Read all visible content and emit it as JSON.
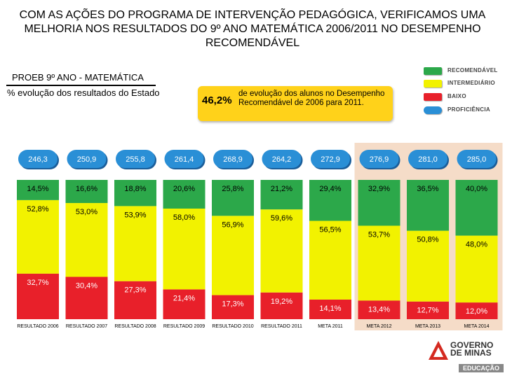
{
  "title": "COM AS AÇÕES DO PROGRAMA DE INTERVENÇÃO PEDAGÓGICA, VERIFICAMOS UMA MELHORIA NOS RESULTADOS DO 9º ANO MATEMÁTICA 2006/2011 NO DESEMPENHO RECOMENDÁVEL",
  "subtitle": "PROEB 9º ANO - MATEMÁTICA",
  "caption": "% evolução dos resultados do Estado",
  "callout": {
    "percent": "46,2%",
    "text": "de evolução dos alunos no Desempenho Recomendável de 2006 para 2011."
  },
  "legend": [
    {
      "label": "RECOMENDÁVEL",
      "color": "#2ca84a"
    },
    {
      "label": "INTERMEDIÁRIO",
      "color": "#f2f200"
    },
    {
      "label": "BAIXO",
      "color": "#e8202a"
    },
    {
      "label": "PROFICIÊNCIA",
      "color": "#2a8fd6"
    }
  ],
  "logo": {
    "line1": "GOVERNO",
    "line2": "DE MINAS",
    "line3": "EDUCAÇÃO"
  },
  "chart_data": {
    "type": "bar",
    "stacked": true,
    "categories": [
      "RESULTADO 2006",
      "RESULTADO 2007",
      "RESULTADO 2008",
      "RESULTADO 2009",
      "RESULTADO 2010",
      "RESULTADO 2011",
      "META 2011",
      "META 2012",
      "META 2013",
      "META 2014"
    ],
    "proficiency": [
      "246,3",
      "250,9",
      "255,8",
      "261,4",
      "268,9",
      "264,2",
      "272,9",
      "276,9",
      "281,0",
      "285,0"
    ],
    "series": [
      {
        "name": "BAIXO",
        "color": "#e8202a",
        "values": [
          32.7,
          30.4,
          27.3,
          21.4,
          17.3,
          19.2,
          14.1,
          13.4,
          12.7,
          12.0
        ],
        "labels": [
          "32,7%",
          "30,4%",
          "27,3%",
          "21,4%",
          "17,3%",
          "19,2%",
          "14,1%",
          "13,4%",
          "12,7%",
          "12,0%"
        ]
      },
      {
        "name": "INTERMEDIÁRIO",
        "color": "#f2f200",
        "values": [
          52.8,
          53.0,
          53.9,
          58.0,
          56.9,
          59.6,
          56.5,
          53.7,
          50.8,
          48.0
        ],
        "labels": [
          "52,8%",
          "53,0%",
          "53,9%",
          "58,0%",
          "56,9%",
          "59,6%",
          "56,5%",
          "53,7%",
          "50,8%",
          "48,0%"
        ]
      },
      {
        "name": "RECOMENDÁVEL",
        "color": "#2ca84a",
        "values": [
          14.5,
          16.6,
          18.8,
          20.6,
          25.8,
          21.2,
          29.4,
          32.9,
          36.5,
          40.0
        ],
        "labels": [
          "14,5%",
          "16,6%",
          "18,8%",
          "20,6%",
          "25,8%",
          "21,2%",
          "29,4%",
          "32,9%",
          "36,5%",
          "40,0%"
        ]
      }
    ],
    "ylim": [
      0,
      100
    ],
    "xlabel": "",
    "ylabel": "",
    "highlight_range": [
      "META 2012",
      "META 2014"
    ]
  }
}
